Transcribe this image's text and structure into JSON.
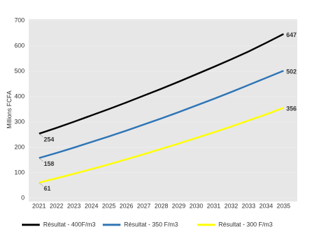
{
  "chart_data": {
    "type": "line",
    "y_label": "Millions FCFA",
    "x": [
      2021,
      2022,
      2023,
      2024,
      2025,
      2026,
      2027,
      2028,
      2029,
      2030,
      2031,
      2032,
      2033,
      2034,
      2035
    ],
    "series": [
      {
        "name": "Résultat - 400F/m3",
        "color": "#000000",
        "values": [
          254,
          277,
          301,
          326,
          351,
          377,
          404,
          431,
          459,
          488,
          517,
          547,
          578,
          612,
          647
        ]
      },
      {
        "name": "Résultat - 350 F/m3",
        "color": "#2e75b6",
        "values": [
          158,
          178,
          199,
          221,
          243,
          266,
          290,
          314,
          339,
          365,
          391,
          418,
          446,
          474,
          502
        ]
      },
      {
        "name": "Résultat - 300 F/m3",
        "color": "#ffff00",
        "values": [
          61,
          78,
          96,
          114,
          133,
          153,
          173,
          194,
          215,
          237,
          259,
          282,
          306,
          330,
          356
        ]
      }
    ],
    "ylim": [
      0,
      700
    ],
    "yticks": [
      0,
      100,
      200,
      300,
      400,
      500,
      600,
      700
    ],
    "grid": true
  }
}
